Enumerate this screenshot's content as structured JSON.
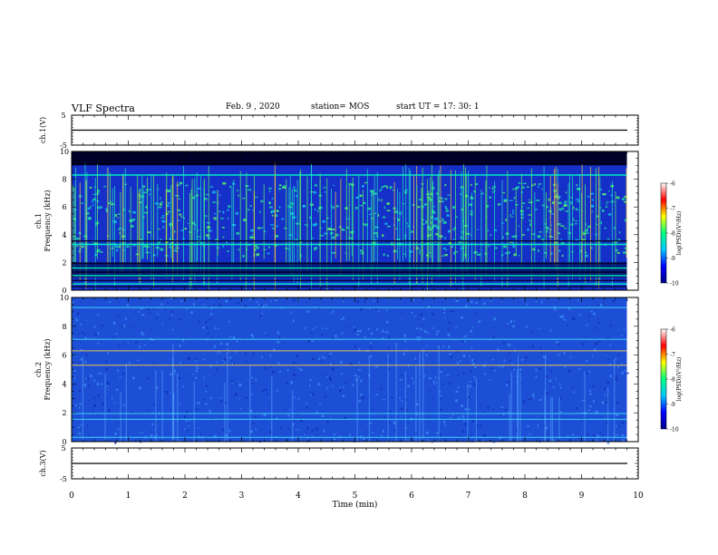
{
  "header": {
    "title": "VLF Spectra",
    "date": "Feb. 9 , 2020",
    "station": "station= MOS",
    "start": "start UT = 17: 30: 1"
  },
  "chart_data": [
    {
      "type": "line",
      "panel": "ch1-voltage",
      "ylabel": "ch.1(V)",
      "ylim": [
        -5,
        5
      ],
      "yticks": [
        "5",
        "-5"
      ],
      "xlim": [
        0,
        10
      ],
      "baseline": 0,
      "color": "#000000"
    },
    {
      "type": "heatmap",
      "panel": "ch1-spectrogram",
      "ylabel": "ch.1\nFrequency (kHz)",
      "ylim": [
        0,
        10
      ],
      "yticks": [
        "0",
        "2",
        "4",
        "6",
        "8",
        "10"
      ],
      "xlim": [
        0,
        9.8
      ],
      "tones_khz": [
        0.25,
        0.45,
        0.7,
        1.05,
        1.3,
        1.6,
        1.95,
        3.3,
        3.55,
        8.3,
        9.1
      ],
      "colorbar": {
        "label": "log(PSD)(V²/Hz)",
        "range": [
          -10,
          -6
        ],
        "ticks": [
          "-6",
          "-7",
          "-8",
          "-9",
          "-10"
        ],
        "colors": [
          "#00008b",
          "#0000ff",
          "#00c8ff",
          "#00ff80",
          "#ffff00",
          "#ff0000",
          "#ffffff"
        ]
      }
    },
    {
      "type": "heatmap",
      "panel": "ch2-spectrogram",
      "ylabel": "ch.2\nFrequency (kHz)",
      "ylim": [
        0,
        10
      ],
      "yticks": [
        "0",
        "2",
        "4",
        "6",
        "8",
        "10"
      ],
      "xlim": [
        0,
        9.8
      ],
      "tones_khz": [
        0.3,
        1.55,
        1.95,
        5.3,
        6.3,
        7.1,
        9.3
      ],
      "colorbar": {
        "label": "log(PSD)(V²/Hz)",
        "range": [
          -10,
          -6
        ],
        "ticks": [
          "-6",
          "-7",
          "-8",
          "-9",
          "-10"
        ],
        "colors": [
          "#00008b",
          "#0000ff",
          "#00c8ff",
          "#00ff80",
          "#ffff00",
          "#ff0000",
          "#ffffff"
        ]
      }
    },
    {
      "type": "line",
      "panel": "ch3-voltage",
      "ylabel": "ch.3(V)",
      "ylim": [
        -5,
        5
      ],
      "yticks": [
        "5",
        "-5"
      ],
      "xlim": [
        0,
        10
      ],
      "baseline": 0,
      "color": "#000000"
    }
  ],
  "xaxis": {
    "label": "Time (min)",
    "range": [
      0,
      10
    ],
    "ticks": [
      "0",
      "1",
      "2",
      "3",
      "4",
      "5",
      "6",
      "7",
      "8",
      "9",
      "10"
    ]
  }
}
